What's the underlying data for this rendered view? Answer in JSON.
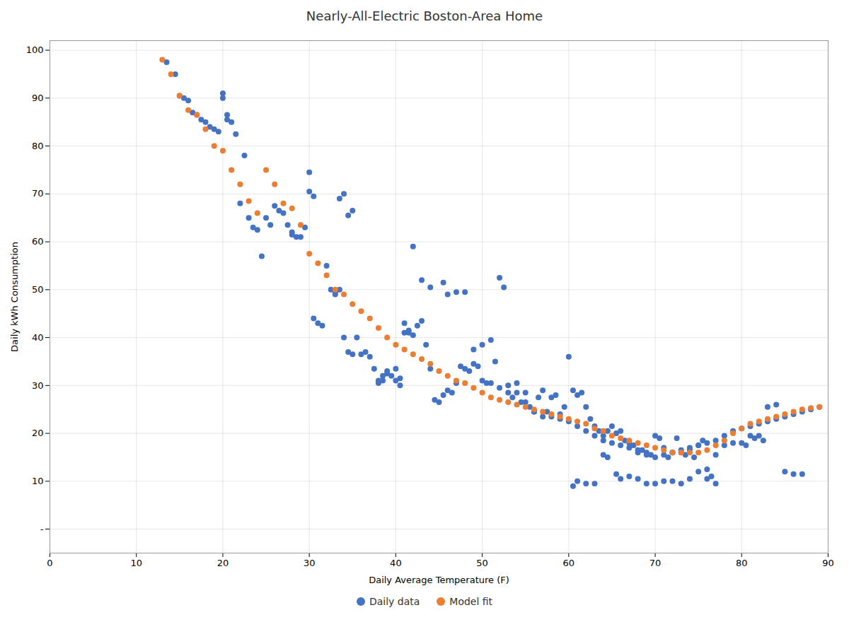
{
  "chart_data": {
    "type": "scatter",
    "title": "Nearly-All-Electric Boston-Area Home",
    "xlabel": "Daily Average Temperature (F)",
    "ylabel": "Daily kWh Consumption",
    "xlim": [
      0,
      90
    ],
    "ylim": [
      -5,
      102
    ],
    "xticks": [
      0,
      10,
      20,
      30,
      40,
      50,
      60,
      70,
      80,
      90
    ],
    "yticks": [
      {
        "value": 0,
        "label": "-"
      },
      10,
      20,
      30,
      40,
      50,
      60,
      70,
      80,
      90,
      100
    ],
    "grid": true,
    "legend": "bottom",
    "series": [
      {
        "name": "Daily data",
        "color": "#4472c4",
        "x": [
          13.5,
          14.5,
          15.0,
          15.5,
          16.0,
          16.5,
          17.0,
          17.5,
          18.0,
          18.5,
          19.0,
          19.5,
          20.0,
          20.0,
          20.5,
          20.5,
          21.0,
          21.5,
          22.0,
          22.5,
          23.0,
          23.5,
          24.0,
          24.5,
          25.0,
          25.5,
          26.0,
          26.5,
          27.0,
          27.5,
          28.0,
          28.0,
          28.5,
          29.0,
          29.5,
          30.0,
          30.0,
          30.5,
          30.5,
          31.0,
          31.5,
          32.0,
          32.5,
          33.0,
          33.0,
          33.5,
          33.5,
          34.0,
          34.0,
          34.5,
          34.5,
          35.0,
          35.0,
          35.5,
          36.0,
          36.5,
          37.0,
          37.5,
          38.0,
          38.0,
          38.5,
          38.5,
          39.0,
          39.0,
          39.5,
          40.0,
          40.0,
          40.5,
          40.5,
          41.0,
          41.0,
          41.5,
          41.5,
          42.0,
          42.0,
          42.5,
          43.0,
          43.0,
          43.5,
          44.0,
          44.0,
          44.5,
          45.0,
          45.5,
          45.5,
          46.0,
          46.0,
          46.5,
          47.0,
          47.0,
          47.5,
          48.0,
          48.0,
          48.5,
          49.0,
          49.0,
          49.5,
          50.0,
          50.0,
          50.5,
          51.0,
          51.0,
          51.5,
          52.0,
          52.0,
          52.5,
          53.0,
          53.0,
          53.5,
          54.0,
          54.0,
          54.5,
          55.0,
          55.0,
          55.5,
          56.0,
          56.0,
          56.5,
          57.0,
          57.0,
          57.5,
          58.0,
          58.0,
          58.5,
          59.0,
          59.0,
          59.5,
          60.0,
          60.0,
          60.5,
          60.5,
          61.0,
          61.0,
          61.0,
          61.5,
          62.0,
          62.0,
          62.0,
          62.5,
          63.0,
          63.0,
          63.0,
          63.5,
          64.0,
          64.0,
          64.0,
          64.5,
          64.5,
          65.0,
          65.0,
          65.5,
          65.5,
          66.0,
          66.0,
          66.0,
          66.5,
          67.0,
          67.0,
          67.0,
          67.5,
          68.0,
          68.0,
          68.0,
          68.5,
          69.0,
          69.0,
          69.0,
          69.5,
          70.0,
          70.0,
          70.0,
          70.5,
          71.0,
          71.0,
          71.0,
          71.5,
          72.0,
          72.0,
          72.0,
          72.5,
          73.0,
          73.0,
          73.0,
          73.5,
          74.0,
          74.0,
          74.0,
          74.5,
          75.0,
          75.0,
          75.0,
          75.5,
          76.0,
          76.0,
          76.0,
          76.5,
          77.0,
          77.0,
          77.0,
          78.0,
          78.0,
          79.0,
          79.0,
          80.0,
          80.0,
          80.5,
          81.0,
          81.0,
          81.5,
          82.0,
          82.0,
          82.5,
          83.0,
          83.0,
          84.0,
          84.0,
          85.0,
          85.0,
          86.0,
          86.0,
          87.0,
          87.0,
          88.0,
          89.0
        ],
        "values": [
          97.5,
          95.0,
          90.5,
          90.0,
          89.5,
          87.0,
          86.5,
          85.5,
          85.0,
          84.0,
          83.5,
          83.0,
          91.0,
          90.0,
          86.5,
          85.5,
          85.0,
          82.5,
          68.0,
          78.0,
          65.0,
          63.0,
          62.5,
          57.0,
          65.0,
          63.5,
          67.5,
          66.5,
          66.0,
          63.5,
          62.0,
          61.5,
          61.0,
          61.0,
          63.0,
          74.5,
          70.5,
          69.5,
          44.0,
          43.0,
          42.5,
          55.0,
          50.0,
          49.5,
          49.0,
          50.0,
          69.0,
          40.0,
          70.0,
          37.0,
          65.5,
          36.5,
          66.5,
          40.0,
          36.5,
          37.0,
          36.0,
          33.5,
          30.5,
          31.0,
          31.0,
          32.0,
          33.0,
          32.5,
          32.0,
          31.0,
          33.5,
          31.5,
          30.0,
          43.0,
          41.0,
          41.5,
          41.0,
          40.5,
          59.0,
          42.5,
          43.5,
          52.0,
          38.5,
          33.5,
          50.5,
          27.0,
          26.5,
          28.0,
          51.5,
          29.0,
          49.0,
          28.5,
          30.5,
          49.5,
          34.0,
          33.5,
          49.5,
          33.0,
          34.5,
          37.5,
          34.0,
          31.0,
          38.5,
          30.5,
          30.5,
          39.5,
          35.0,
          52.5,
          29.5,
          50.5,
          30.0,
          28.5,
          27.5,
          28.5,
          30.5,
          26.5,
          26.5,
          28.5,
          25.5,
          24.5,
          24.5,
          27.5,
          29.0,
          23.5,
          24.5,
          27.5,
          23.5,
          28.0,
          24.0,
          23.0,
          25.5,
          36.0,
          22.5,
          29.0,
          9.0,
          28.0,
          10.0,
          21.5,
          28.5,
          25.5,
          9.5,
          20.5,
          23.0,
          21.5,
          9.5,
          19.5,
          20.5,
          19.5,
          15.5,
          18.5,
          20.5,
          15.0,
          21.5,
          18.0,
          20.0,
          11.5,
          20.5,
          10.5,
          17.5,
          18.5,
          18.0,
          11.0,
          17.0,
          17.5,
          16.0,
          10.5,
          16.5,
          16.5,
          16.0,
          9.5,
          15.5,
          15.5,
          19.5,
          9.5,
          15.0,
          19.0,
          17.0,
          10.0,
          15.5,
          15.0,
          16.0,
          10.0,
          16.0,
          19.0,
          16.0,
          9.5,
          16.5,
          15.5,
          16.5,
          10.5,
          17.0,
          15.0,
          17.5,
          12.0,
          17.5,
          18.5,
          10.5,
          12.5,
          18.0,
          11.0,
          9.5,
          15.5,
          18.5,
          17.5,
          19.5,
          18.0,
          20.5,
          18.0,
          21.0,
          17.5,
          19.5,
          21.5,
          19.0,
          19.5,
          22.0,
          18.5,
          25.5,
          22.5,
          26.0,
          23.0,
          12.0,
          23.5,
          11.5,
          24.0,
          11.5,
          24.5,
          25.0,
          25.5
        ]
      },
      {
        "name": "Model fit",
        "color": "#ed7d31",
        "x": [
          13.0,
          14.0,
          15.0,
          16.0,
          17.0,
          18.0,
          19.0,
          20.0,
          21.0,
          22.0,
          23.0,
          24.0,
          25.0,
          26.0,
          27.0,
          28.0,
          29.0,
          30.0,
          31.0,
          32.0,
          33.0,
          34.0,
          35.0,
          36.0,
          37.0,
          38.0,
          39.0,
          40.0,
          41.0,
          42.0,
          43.0,
          44.0,
          45.0,
          46.0,
          47.0,
          48.0,
          49.0,
          50.0,
          51.0,
          52.0,
          53.0,
          54.0,
          55.0,
          56.0,
          57.0,
          58.0,
          59.0,
          60.0,
          61.0,
          62.0,
          63.0,
          64.0,
          65.0,
          66.0,
          67.0,
          68.0,
          69.0,
          70.0,
          71.0,
          72.0,
          73.0,
          74.0,
          75.0,
          76.0,
          77.0,
          78.0,
          79.0,
          80.0,
          81.0,
          82.0,
          83.0,
          84.0,
          85.0,
          86.0,
          87.0,
          88.0,
          89.0
        ],
        "values": [
          98.0,
          95.0,
          90.5,
          87.5,
          86.5,
          83.5,
          80.0,
          79.0,
          75.0,
          72.0,
          68.5,
          66.0,
          75.0,
          72.0,
          68.0,
          67.0,
          63.5,
          57.5,
          55.5,
          53.0,
          50.0,
          49.0,
          47.0,
          45.5,
          44.0,
          42.0,
          40.0,
          38.5,
          37.5,
          36.5,
          35.5,
          34.5,
          33.0,
          32.0,
          31.0,
          30.5,
          29.5,
          28.5,
          27.5,
          27.0,
          26.5,
          26.0,
          25.5,
          25.0,
          24.5,
          24.0,
          23.5,
          23.0,
          22.5,
          22.0,
          21.0,
          20.5,
          19.5,
          19.0,
          18.5,
          18.0,
          17.5,
          17.0,
          16.5,
          16.0,
          16.0,
          16.0,
          16.0,
          16.5,
          17.5,
          18.5,
          20.0,
          21.0,
          22.0,
          22.5,
          23.0,
          23.5,
          24.0,
          24.5,
          25.0,
          25.3,
          25.5
        ]
      }
    ]
  }
}
